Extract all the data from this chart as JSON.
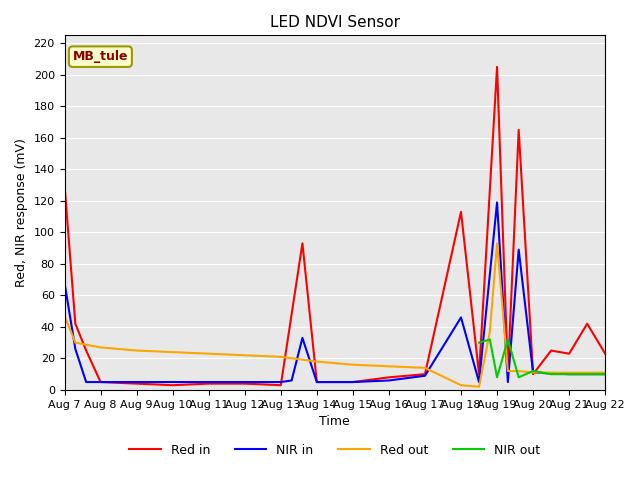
{
  "title": "LED NDVI Sensor",
  "xlabel": "Time",
  "ylabel": "Red, NIR response (mV)",
  "ylim": [
    0,
    225
  ],
  "yticks": [
    0,
    20,
    40,
    60,
    80,
    100,
    120,
    140,
    160,
    180,
    200,
    220
  ],
  "annotation_label": "MB_tule",
  "x_labels": [
    "Aug 7",
    "Aug 8",
    "Aug 9",
    "Aug 10",
    "Aug 11",
    "Aug 12",
    "Aug 13",
    "Aug 14",
    "Aug 15",
    "Aug 16",
    "Aug 17",
    "Aug 18",
    "Aug 19",
    "Aug 20",
    "Aug 21",
    "Aug 22"
  ],
  "legend_labels": [
    "Red in",
    "NIR in",
    "Red out",
    "NIR out"
  ],
  "line_colors": [
    "#ff0000",
    "#0000ff",
    "#ffa500",
    "#00cc00"
  ],
  "red_in_x": [
    0,
    0.3,
    0.6,
    1.0,
    2.0,
    3.0,
    4.0,
    5.0,
    6.0,
    6.3,
    6.6,
    7.0,
    7.3,
    8.0,
    9.0,
    10.0,
    11.0,
    11.5,
    12.0,
    12.3,
    12.6,
    13.0,
    13.5,
    14.0,
    14.5,
    15.0
  ],
  "red_in_y": [
    130,
    42,
    25,
    5,
    4,
    3,
    4,
    4,
    3,
    48,
    93,
    5,
    5,
    5,
    8,
    10,
    113,
    10,
    205,
    10,
    165,
    10,
    25,
    23,
    42,
    23
  ],
  "nir_in_x": [
    0,
    0.3,
    0.6,
    1.0,
    2.0,
    3.0,
    4.0,
    5.0,
    6.0,
    6.3,
    6.6,
    7.0,
    8.0,
    9.0,
    10.0,
    11.0,
    11.5,
    12.0,
    12.3,
    12.6,
    13.0,
    14.0,
    14.5,
    15.0
  ],
  "nir_in_y": [
    68,
    26,
    5,
    5,
    5,
    5,
    5,
    5,
    5,
    6,
    33,
    5,
    5,
    6,
    9,
    46,
    5,
    119,
    5,
    89,
    11,
    10,
    10,
    10
  ],
  "red_out_x": [
    0,
    0.3,
    1.0,
    2.0,
    3.0,
    4.0,
    5.0,
    6.0,
    7.0,
    8.0,
    9.0,
    10.0,
    11.0,
    11.5,
    11.8,
    12.0,
    12.3,
    12.6,
    13.0,
    14.0,
    14.5,
    15.0
  ],
  "red_out_y": [
    47,
    30,
    27,
    25,
    24,
    23,
    22,
    21,
    18,
    16,
    15,
    14,
    3,
    2,
    37,
    93,
    12,
    12,
    11,
    11,
    11,
    11
  ],
  "nir_out_x": [
    11.5,
    11.8,
    12.0,
    12.3,
    12.6,
    13.0,
    13.5,
    14.0,
    14.5,
    15.0
  ],
  "nir_out_y": [
    30,
    32,
    8,
    32,
    8,
    12,
    10,
    10,
    10,
    10
  ]
}
